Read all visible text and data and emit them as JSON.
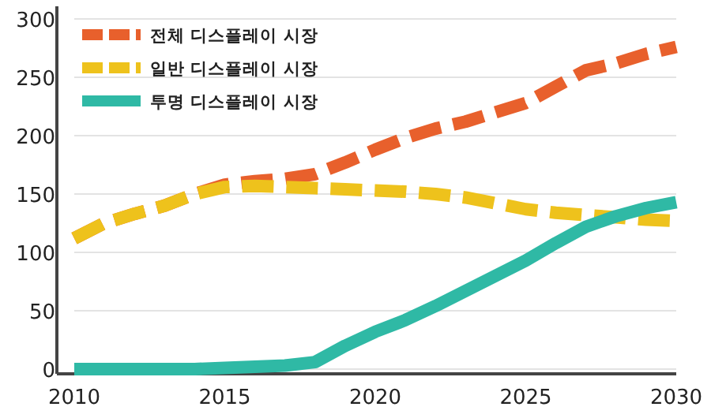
{
  "chart_data": {
    "type": "line",
    "x": [
      2010,
      2011,
      2012,
      2013,
      2014,
      2015,
      2016,
      2017,
      2018,
      2019,
      2020,
      2021,
      2022,
      2023,
      2024,
      2025,
      2026,
      2027,
      2028,
      2029,
      2030
    ],
    "series": [
      {
        "name": "전체 디스플레이 시장",
        "color": "#e8602c",
        "line_style": "dashed",
        "values": [
          112,
          125,
          133,
          140,
          150,
          158,
          161,
          163,
          167,
          177,
          188,
          198,
          206,
          212,
          220,
          228,
          242,
          256,
          262,
          270,
          276
        ]
      },
      {
        "name": "일반 디스플레이 시장",
        "color": "#eec21c",
        "line_style": "dashed",
        "values": [
          112,
          125,
          133,
          140,
          150,
          156,
          157,
          156,
          155,
          154,
          153,
          152,
          150,
          147,
          142,
          137,
          134,
          132,
          130,
          128,
          127
        ]
      },
      {
        "name": "투명 디스플레이 시장",
        "color": "#2fb9a5",
        "line_style": "solid",
        "values": [
          0,
          0,
          0,
          0,
          0,
          1,
          2,
          3,
          6,
          20,
          32,
          42,
          54,
          67,
          80,
          93,
          108,
          122,
          131,
          138,
          143
        ]
      }
    ],
    "xlim": [
      2010,
      2030
    ],
    "xticks": [
      2010,
      2015,
      2020,
      2025,
      2030
    ],
    "ylim": [
      0,
      300
    ],
    "yticks": [
      0,
      50,
      100,
      150,
      200,
      250,
      300
    ],
    "grid": "y",
    "legend": "top left"
  }
}
